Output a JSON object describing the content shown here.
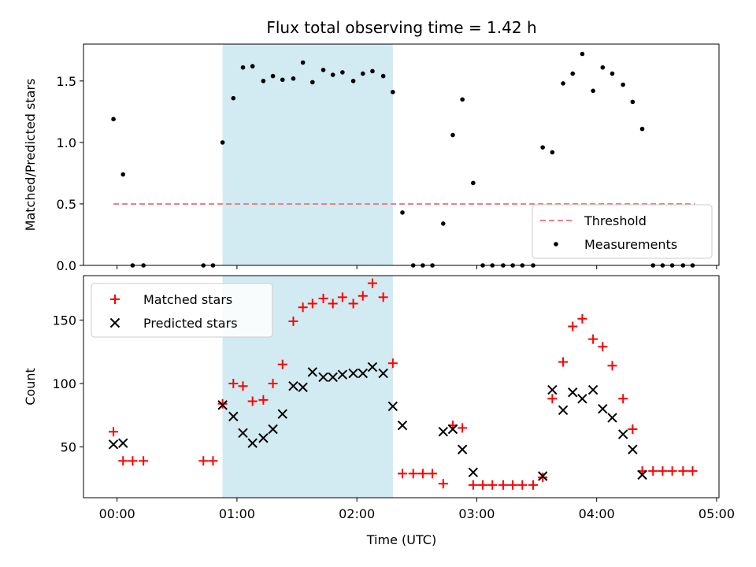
{
  "chart_data": {
    "title": "Flux total observing time = 1.42 h",
    "xlabel": "Time (UTC)",
    "x_ticks": [
      "00:00",
      "01:00",
      "02:00",
      "03:00",
      "04:00",
      "05:00"
    ],
    "x_range_hours": [
      -0.28,
      5.02
    ],
    "highlight_span_hours": [
      0.88,
      2.3
    ],
    "highlight_color": "#add8e6",
    "panels": [
      {
        "type": "scatter",
        "ylabel": "Matched/Predicted stars",
        "ylim": [
          0,
          1.8
        ],
        "y_ticks": [
          0.0,
          0.5,
          1.0,
          1.5
        ],
        "legend_position": "lower-right",
        "threshold": {
          "name": "Threshold",
          "value": 0.5,
          "x_range": [
            -0.03,
            4.82
          ],
          "color": "#f08080"
        },
        "series": [
          {
            "name": "Measurements",
            "color": "#000000",
            "x": [
              -0.03,
              0.05,
              0.13,
              0.22,
              0.72,
              0.8,
              0.88,
              0.97,
              1.05,
              1.13,
              1.22,
              1.3,
              1.38,
              1.47,
              1.55,
              1.63,
              1.72,
              1.8,
              1.88,
              1.97,
              2.05,
              2.13,
              2.22,
              2.3,
              2.38,
              2.47,
              2.55,
              2.63,
              2.72,
              2.8,
              2.88,
              2.97,
              3.05,
              3.13,
              3.22,
              3.3,
              3.38,
              3.47,
              3.55,
              3.63,
              3.72,
              3.8,
              3.88,
              3.97,
              4.05,
              4.13,
              4.22,
              4.3,
              4.38,
              4.47,
              4.55,
              4.63,
              4.72,
              4.8
            ],
            "y": [
              1.19,
              0.74,
              0,
              0,
              0,
              0,
              1.0,
              1.36,
              1.61,
              1.62,
              1.5,
              1.54,
              1.51,
              1.52,
              1.65,
              1.49,
              1.59,
              1.55,
              1.57,
              1.5,
              1.56,
              1.58,
              1.54,
              1.41,
              0.43,
              0,
              0,
              0,
              0.34,
              1.06,
              1.35,
              0.67,
              0,
              0,
              0,
              0,
              0,
              0,
              0.96,
              0.92,
              1.48,
              1.56,
              1.72,
              1.42,
              1.61,
              1.56,
              1.47,
              1.33,
              1.11,
              0,
              0,
              0,
              0,
              0
            ]
          }
        ]
      },
      {
        "type": "scatter",
        "ylabel": "Count",
        "ylim": [
          10,
          185
        ],
        "y_ticks": [
          50,
          100,
          150
        ],
        "legend_position": "upper-left",
        "series": [
          {
            "name": "Matched stars",
            "color": "#ff0000",
            "marker": "plus",
            "x": [
              -0.03,
              0.05,
              0.13,
              0.22,
              0.72,
              0.8,
              0.88,
              0.97,
              1.05,
              1.13,
              1.22,
              1.3,
              1.38,
              1.47,
              1.55,
              1.63,
              1.72,
              1.8,
              1.88,
              1.97,
              2.05,
              2.13,
              2.22,
              2.3,
              2.38,
              2.47,
              2.55,
              2.63,
              2.72,
              2.8,
              2.88,
              2.97,
              3.05,
              3.13,
              3.22,
              3.3,
              3.38,
              3.47,
              3.55,
              3.63,
              3.72,
              3.8,
              3.88,
              3.97,
              4.05,
              4.13,
              4.22,
              4.3,
              4.38,
              4.47,
              4.55,
              4.63,
              4.72,
              4.8
            ],
            "y": [
              62,
              39,
              39,
              39,
              39,
              39,
              84,
              100,
              98,
              86,
              87,
              100,
              115,
              149,
              160,
              163,
              167,
              163,
              168,
              163,
              169,
              179,
              168,
              116,
              29,
              29,
              29,
              29,
              21,
              67,
              65,
              20,
              20,
              20,
              20,
              20,
              20,
              20,
              26,
              88,
              117,
              145,
              151,
              135,
              129,
              114,
              88,
              64,
              31,
              31,
              31,
              31,
              31,
              31
            ]
          },
          {
            "name": "Predicted stars",
            "color": "#000000",
            "marker": "x",
            "x": [
              -0.03,
              0.05,
              0.88,
              0.97,
              1.05,
              1.13,
              1.22,
              1.3,
              1.38,
              1.47,
              1.55,
              1.63,
              1.72,
              1.8,
              1.88,
              1.97,
              2.05,
              2.13,
              2.22,
              2.3,
              2.38,
              2.72,
              2.8,
              2.88,
              2.97,
              3.55,
              3.63,
              3.72,
              3.8,
              3.88,
              3.97,
              4.05,
              4.13,
              4.22,
              4.3,
              4.38
            ],
            "y": [
              52,
              53,
              83,
              74,
              61,
              53,
              57,
              64,
              76,
              98,
              97,
              109,
              105,
              105,
              107,
              108,
              108,
              113,
              108,
              82,
              67,
              62,
              64,
              48,
              30,
              27,
              95,
              79,
              93,
              88,
              95,
              80,
              73,
              60,
              48,
              28
            ]
          }
        ]
      }
    ]
  }
}
